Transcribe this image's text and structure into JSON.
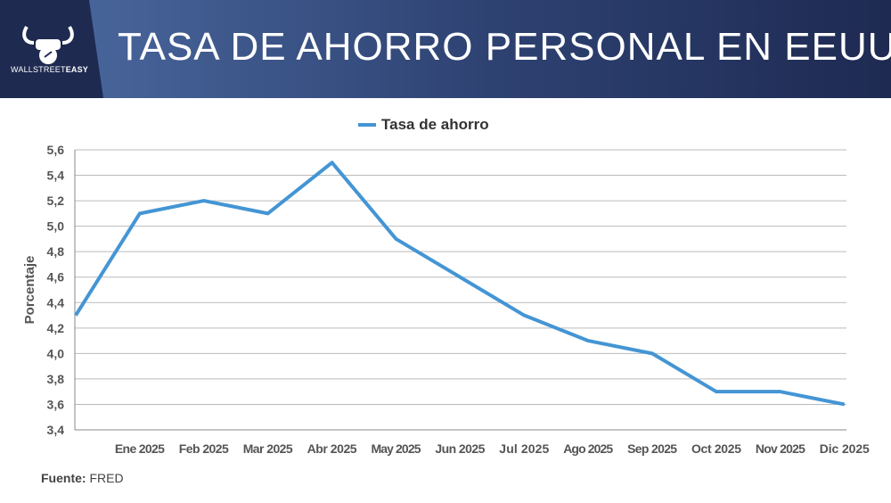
{
  "header": {
    "title": "TASA DE AHORRO PERSONAL EN EEUU",
    "brand_light": "WALLSTREET",
    "brand_bold": "EASY"
  },
  "source": {
    "label": "Fuente:",
    "value": "FRED"
  },
  "colors": {
    "line": "#4495d4",
    "header_dark": "#1e2a50"
  },
  "chart_data": {
    "type": "line",
    "title": "",
    "xlabel": "",
    "ylabel": "Porcentaje",
    "legend": {
      "position": "top-center",
      "entries": [
        "Tasa de ahorro"
      ]
    },
    "x": [
      "",
      "Ene 2025",
      "Feb 2025",
      "Mar 2025",
      "Abr 2025",
      "May 2025",
      "Jun 2025",
      "Jul 2025",
      "Ago 2025",
      "Sep 2025",
      "Oct 2025",
      "Nov 2025",
      "Dic 2025"
    ],
    "series": [
      {
        "name": "Tasa de ahorro",
        "values": [
          4.3,
          5.1,
          5.2,
          5.1,
          5.5,
          4.9,
          4.6,
          4.3,
          4.1,
          4.0,
          3.7,
          3.7,
          3.6
        ]
      }
    ],
    "ylim": [
      3.4,
      5.6
    ],
    "yticks": [
      "3,4",
      "3,6",
      "3,8",
      "4,0",
      "4,2",
      "4,4",
      "4,6",
      "4,8",
      "5,0",
      "5,2",
      "5,4",
      "5,6"
    ],
    "grid": true
  }
}
